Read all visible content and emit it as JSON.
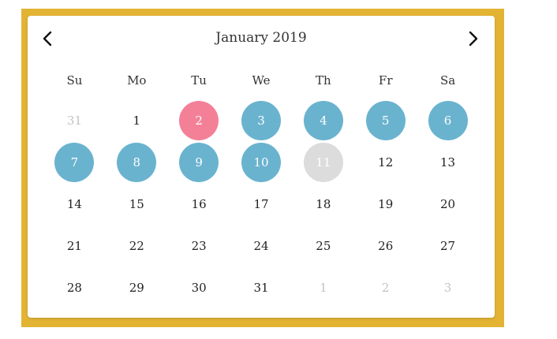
{
  "header": {
    "title": "January 2019",
    "prev_icon": "chevron-left-icon",
    "next_icon": "chevron-right-icon"
  },
  "weekdays": [
    "Su",
    "Mo",
    "Tu",
    "We",
    "Th",
    "Fr",
    "Sa"
  ],
  "colors": {
    "frame": "#e3b433",
    "today": "#f48097",
    "selected": "#6ab3cf",
    "disabled": "#dcdcdc",
    "other_month_text": "#c3c3c3"
  },
  "weeks": [
    [
      {
        "day": "31",
        "state": "other"
      },
      {
        "day": "1",
        "state": "normal"
      },
      {
        "day": "2",
        "state": "today"
      },
      {
        "day": "3",
        "state": "selected"
      },
      {
        "day": "4",
        "state": "selected"
      },
      {
        "day": "5",
        "state": "selected"
      },
      {
        "day": "6",
        "state": "selected"
      }
    ],
    [
      {
        "day": "7",
        "state": "selected"
      },
      {
        "day": "8",
        "state": "selected"
      },
      {
        "day": "9",
        "state": "selected"
      },
      {
        "day": "10",
        "state": "selected"
      },
      {
        "day": "11",
        "state": "disabled"
      },
      {
        "day": "12",
        "state": "normal"
      },
      {
        "day": "13",
        "state": "normal"
      }
    ],
    [
      {
        "day": "14",
        "state": "normal"
      },
      {
        "day": "15",
        "state": "normal"
      },
      {
        "day": "16",
        "state": "normal"
      },
      {
        "day": "17",
        "state": "normal"
      },
      {
        "day": "18",
        "state": "normal"
      },
      {
        "day": "19",
        "state": "normal"
      },
      {
        "day": "20",
        "state": "normal"
      }
    ],
    [
      {
        "day": "21",
        "state": "normal"
      },
      {
        "day": "22",
        "state": "normal"
      },
      {
        "day": "23",
        "state": "normal"
      },
      {
        "day": "24",
        "state": "normal"
      },
      {
        "day": "25",
        "state": "normal"
      },
      {
        "day": "26",
        "state": "normal"
      },
      {
        "day": "27",
        "state": "normal"
      }
    ],
    [
      {
        "day": "28",
        "state": "normal"
      },
      {
        "day": "29",
        "state": "normal"
      },
      {
        "day": "30",
        "state": "normal"
      },
      {
        "day": "31",
        "state": "normal"
      },
      {
        "day": "1",
        "state": "other"
      },
      {
        "day": "2",
        "state": "other"
      },
      {
        "day": "3",
        "state": "other"
      }
    ]
  ]
}
